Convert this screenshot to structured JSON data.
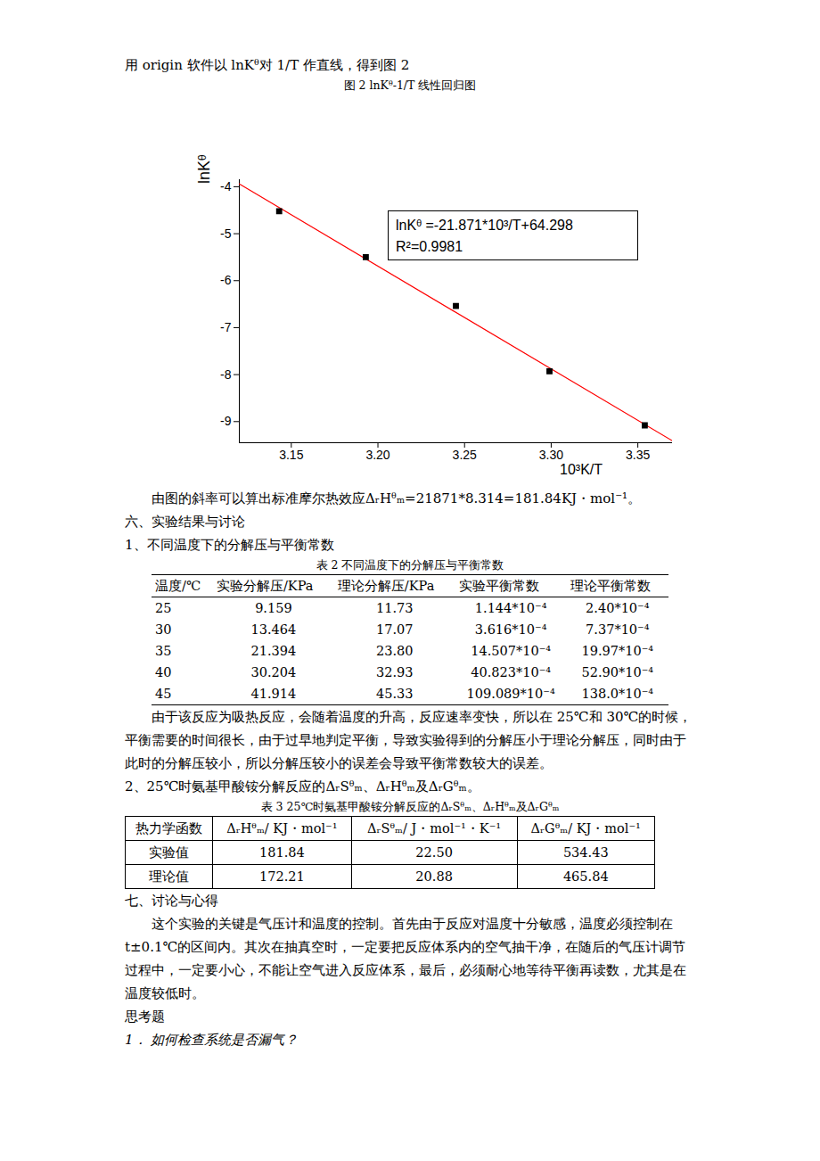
{
  "intro": "用 origin 软件以 lnKᶿ对 1/T 作直线，得到图 2",
  "figure_caption": "图 2   lnKᶿ-1/T 线性回归图",
  "chart_data": {
    "type": "scatter",
    "x_label": "10³K/T",
    "y_label": "lnKᶿ",
    "x": [
      3.143,
      3.193,
      3.245,
      3.299,
      3.354
    ],
    "values": [
      -4.52,
      -5.5,
      -6.54,
      -7.93,
      -9.08
    ],
    "marker": "square",
    "color": "#000000",
    "fit_line": {
      "type": "line",
      "color": "#ff0000",
      "x": [
        3.12,
        3.37
      ],
      "values": [
        -3.94,
        -9.41
      ]
    },
    "annotations": [
      "lnKᶿ  =-21.871*10³/T+64.298",
      "R²=0.9981"
    ],
    "xlim": [
      3.12,
      3.37
    ],
    "xticks": [
      3.15,
      {
        "value": 3.2,
        "label": "3.20"
      },
      3.25,
      {
        "value": 3.3,
        "label": "3.30"
      },
      3.35
    ],
    "ylim": [
      -9.45,
      -3.85
    ],
    "yticks": [
      -9,
      -8,
      -7,
      -6,
      -5,
      -4
    ]
  },
  "slope_text": "由图的斜率可以算出标准摩尔热效应ΔᵣHᶿₘ=21871*8.314=181.84KJ・mol⁻¹。",
  "section6": "六、实验结果与讨论",
  "sub1": "1、不同温度下的分解压与平衡常数",
  "table2": {
    "caption": "表 2 不同温度下的分解压与平衡常数",
    "header": [
      "温度/℃",
      "实验分解压/KPa",
      "理论分解压/KPa",
      "实验平衡常数",
      "理论平衡常数"
    ],
    "rows": [
      [
        "25",
        "9.159",
        "11.73",
        "1.144*10⁻⁴",
        "2.40*10⁻⁴"
      ],
      [
        "30",
        "13.464",
        "17.07",
        "3.616*10⁻⁴",
        "7.37*10⁻⁴"
      ],
      [
        "35",
        "21.394",
        "23.80",
        "14.507*10⁻⁴",
        "19.97*10⁻⁴"
      ],
      [
        "40",
        "30.204",
        "32.93",
        "40.823*10⁻⁴",
        "52.90*10⁻⁴"
      ],
      [
        "45",
        "41.914",
        "45.33",
        "109.089*10⁻⁴",
        "138.0*10⁻⁴"
      ]
    ]
  },
  "paragraph1": "由于该反应为吸热反应，会随着温度的升高，反应速率变快，所以在 25℃和 30℃的时候，平衡需要的时间很长，由于过早地判定平衡，导致实验得到的分解压小于理论分解压，同时由于此时的分解压较小，所以分解压较小的误差会导致平衡常数较大的误差。",
  "sub2": "2、25℃时氨基甲酸铵分解反应的ΔᵣSᶿₘ、ΔᵣHᶿₘ及ΔᵣGᶿₘ。",
  "table3": {
    "caption": "表 3      25℃时氨基甲酸铵分解反应的ΔᵣSᶿₘ、ΔᵣHᶿₘ及ΔᵣGᶿₘ",
    "header": [
      "热力学函数",
      "ΔᵣHᶿₘ/ KJ・mol⁻¹",
      "ΔᵣSᶿₘ/ J・mol⁻¹・K⁻¹",
      "ΔᵣGᶿₘ/ KJ・mol⁻¹"
    ],
    "rows": [
      [
        "实验值",
        "181.84",
        "22.50",
        "534.43"
      ],
      [
        "理论值",
        "172.21",
        "20.88",
        "465.84"
      ]
    ]
  },
  "section7": "七、讨论与心得",
  "paragraph2": "这个实验的关键是气压计和温度的控制。首先由于反应对温度十分敏感，温度必须控制在 t±0.1℃的区间内。其次在抽真空时，一定要把反应体系内的空气抽干净，在随后的气压计调节过程中，一定要小心，不能让空气进入反应体系，最后，必须耐心地等待平衡再读数，尤其是在温度较低时。",
  "questions_title": "思考题",
  "question1": "1．  如何检查系统是否漏气？"
}
